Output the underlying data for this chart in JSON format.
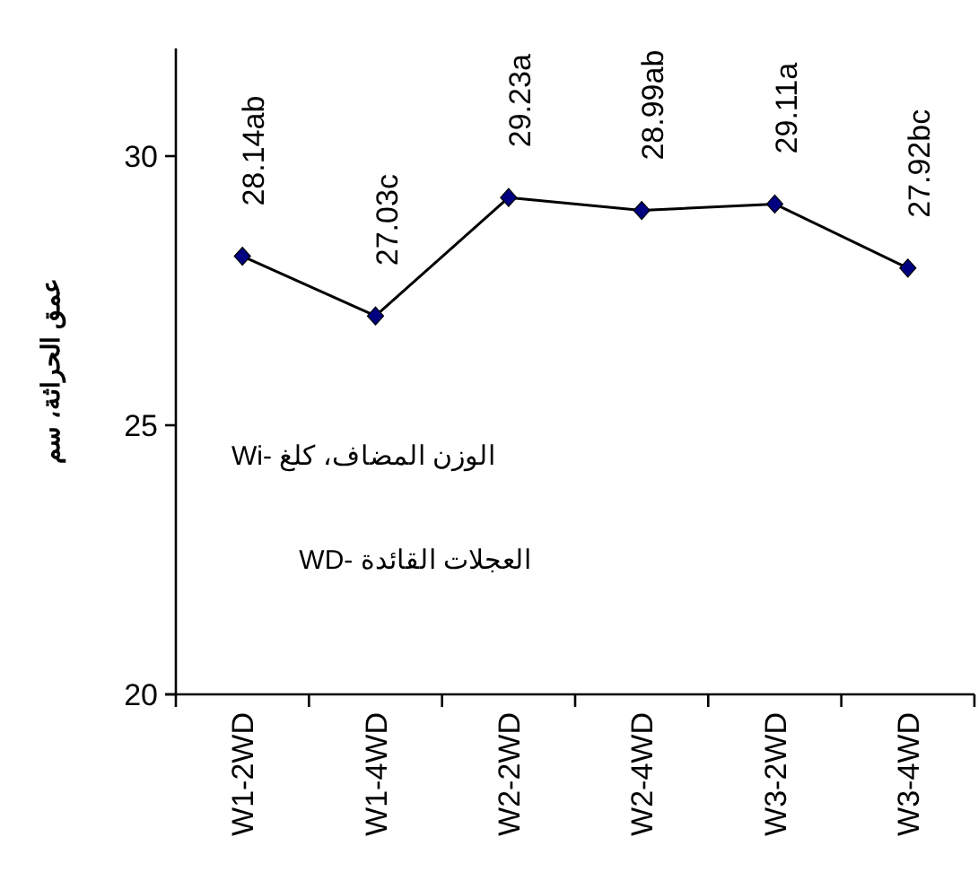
{
  "chart_data": {
    "type": "line",
    "ylabel": "عمق الحراثة، سم",
    "categories": [
      "W1-2WD",
      "W1-4WD",
      "W2-2WD",
      "W2-4WD",
      "W3-2WD",
      "W3-4WD"
    ],
    "series": [
      {
        "color": "#000000",
        "colors": [
          "#000080",
          "#000080",
          "#000080",
          "#000080",
          "#000080",
          "#000080"
        ],
        "values": [
          28.14,
          27.03,
          29.23,
          28.99,
          29.11,
          27.92
        ],
        "value_labels": [
          "28.14ab",
          "27.03c",
          "29.23a",
          "28.99ab",
          "29.11a",
          "27.92bc"
        ]
      }
    ],
    "marker": "diamond",
    "line_style": "solid",
    "ylim": [
      20,
      32
    ],
    "yticks": [
      20,
      25,
      30
    ],
    "grid": false,
    "annotations": [
      "الوزن المضاف، كلغ -Wi",
      "العجلات القائدة -WD"
    ]
  }
}
